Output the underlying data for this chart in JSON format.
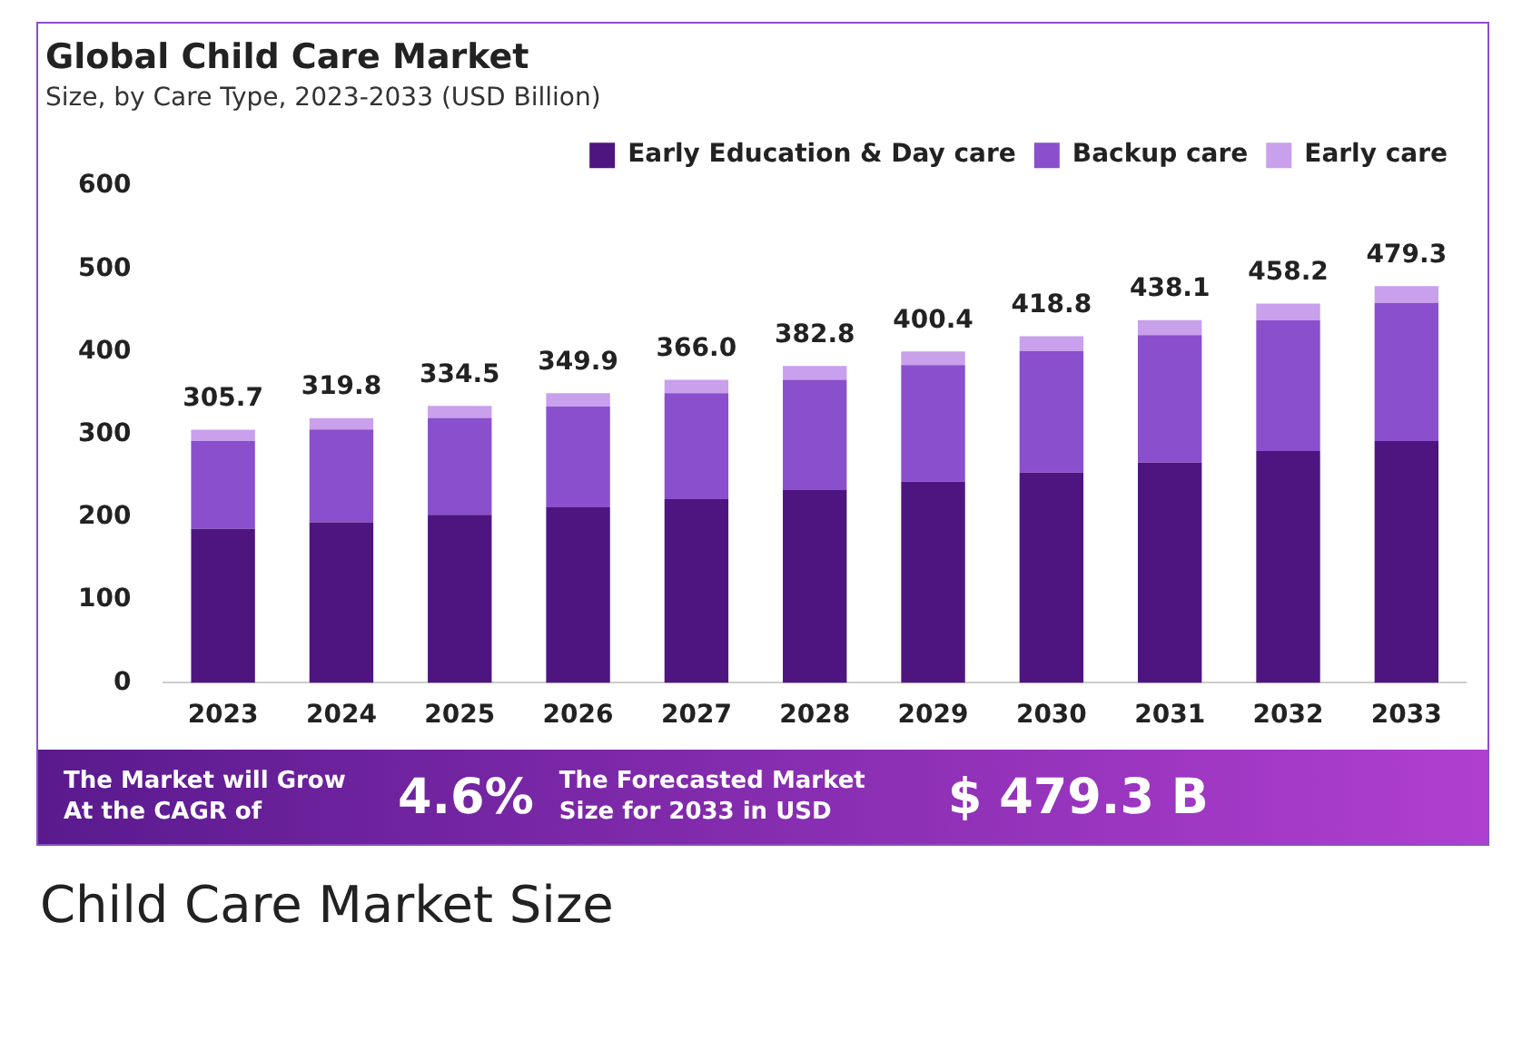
{
  "chart_data": {
    "type": "bar",
    "title": "Global Child Care Market",
    "subtitle": "Size, by Care Type, 2023-2033 (USD Billion)",
    "categories": [
      "2023",
      "2024",
      "2025",
      "2026",
      "2027",
      "2028",
      "2029",
      "2030",
      "2031",
      "2032",
      "2033"
    ],
    "stacked": true,
    "series": [
      {
        "name": "Early Education & Day care",
        "color": "#4e1580",
        "values": [
          186,
          194,
          203,
          212,
          222,
          233,
          243,
          254,
          266,
          280,
          292
        ]
      },
      {
        "name": "Backup care",
        "color": "#8a4fcc",
        "values": [
          106,
          112,
          117,
          122,
          128,
          133,
          141,
          147,
          154,
          158,
          167
        ]
      },
      {
        "name": "Early care",
        "color": "#c9a0ec",
        "values": [
          13.7,
          13.8,
          14.5,
          15.9,
          16,
          16.8,
          16.4,
          17.8,
          18.1,
          20.2,
          20.3
        ]
      }
    ],
    "totals": [
      "305.7",
      "319.8",
      "334.5",
      "349.9",
      "366.0",
      "382.8",
      "400.4",
      "418.8",
      "438.1",
      "458.2",
      "479.3"
    ],
    "ylim": [
      0,
      600
    ],
    "yticks": [
      0,
      100,
      200,
      300,
      400,
      500,
      600
    ],
    "grid": false,
    "legend": "top right",
    "annotations": [
      "The Market will Grow At the CAGR of",
      "4.6%",
      "The Forecasted Market Size for 2033 in USD",
      "$ 479.3 B",
      "Child Care Market Size"
    ]
  }
}
